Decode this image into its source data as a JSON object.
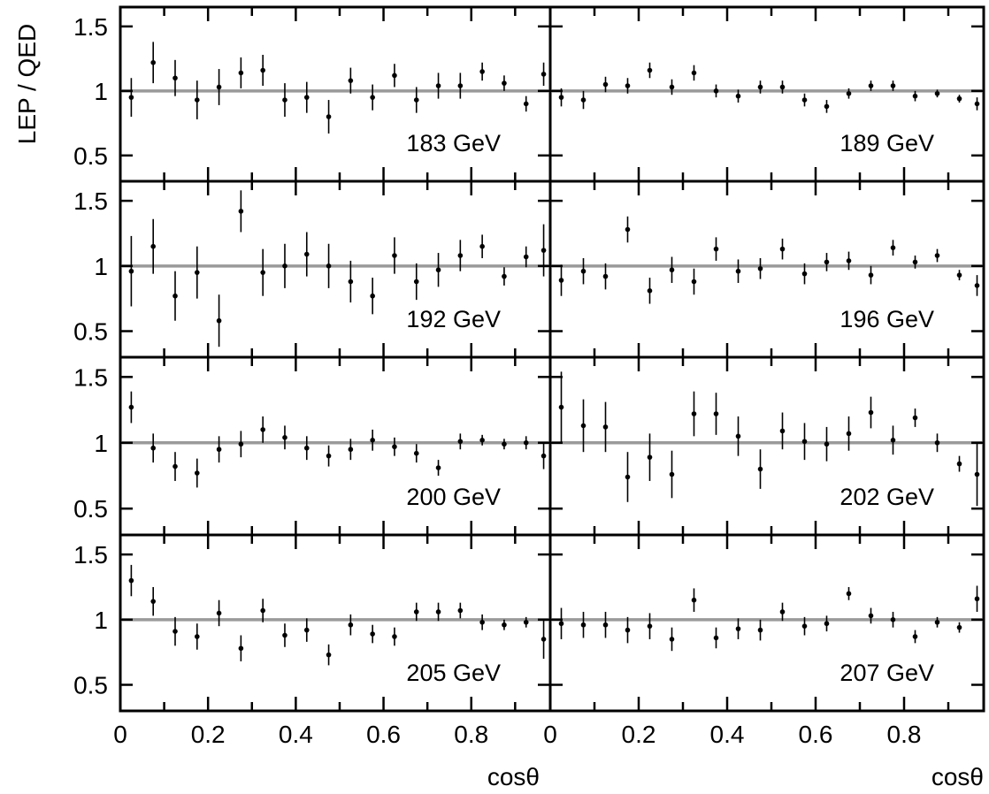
{
  "chart_data": {
    "type": "scatter",
    "ylabel": "LEP / QED",
    "xlabel": "cosθ",
    "xlim": [
      0,
      0.98
    ],
    "ylim": [
      0.3,
      1.65
    ],
    "x_tick_labels": [
      "0",
      "0.2",
      "0.4",
      "0.6",
      "0.8"
    ],
    "y_tick_labels": [
      "0.5",
      "1",
      "1.5"
    ],
    "reference_line": 1.0,
    "reference_color": "#9a9a9a",
    "marker_color": "#000000",
    "panels": [
      {
        "label": "183 GeV",
        "x": [
          0.025,
          0.075,
          0.125,
          0.175,
          0.225,
          0.275,
          0.325,
          0.375,
          0.425,
          0.475,
          0.525,
          0.575,
          0.625,
          0.675,
          0.725,
          0.775,
          0.825,
          0.875,
          0.925,
          0.965
        ],
        "y": [
          0.95,
          1.22,
          1.1,
          0.93,
          1.03,
          1.14,
          1.16,
          0.93,
          0.95,
          0.8,
          1.08,
          0.95,
          1.12,
          0.93,
          1.04,
          1.04,
          1.15,
          1.06,
          0.9,
          1.13
        ],
        "err": [
          0.15,
          0.16,
          0.14,
          0.15,
          0.14,
          0.12,
          0.12,
          0.13,
          0.12,
          0.13,
          0.1,
          0.1,
          0.09,
          0.1,
          0.1,
          0.1,
          0.07,
          0.06,
          0.06,
          0.09
        ]
      },
      {
        "label": "189 GeV",
        "x": [
          0.025,
          0.075,
          0.125,
          0.175,
          0.225,
          0.275,
          0.325,
          0.375,
          0.425,
          0.475,
          0.525,
          0.575,
          0.625,
          0.675,
          0.725,
          0.775,
          0.825,
          0.875,
          0.925,
          0.965
        ],
        "y": [
          0.95,
          0.93,
          1.05,
          1.04,
          1.16,
          1.03,
          1.14,
          1.0,
          0.96,
          1.03,
          1.03,
          0.93,
          0.88,
          0.98,
          1.04,
          1.04,
          0.96,
          0.98,
          0.94,
          0.9
        ],
        "err": [
          0.07,
          0.07,
          0.06,
          0.06,
          0.06,
          0.06,
          0.06,
          0.05,
          0.05,
          0.05,
          0.05,
          0.05,
          0.05,
          0.04,
          0.04,
          0.04,
          0.04,
          0.03,
          0.03,
          0.05
        ]
      },
      {
        "label": "192 GeV",
        "x": [
          0.025,
          0.075,
          0.125,
          0.175,
          0.225,
          0.275,
          0.325,
          0.375,
          0.425,
          0.475,
          0.525,
          0.575,
          0.625,
          0.675,
          0.725,
          0.775,
          0.825,
          0.875,
          0.925,
          0.965
        ],
        "y": [
          0.96,
          1.15,
          0.77,
          0.95,
          0.58,
          1.42,
          0.95,
          1.0,
          1.09,
          1.0,
          0.88,
          0.77,
          1.08,
          0.88,
          0.97,
          1.08,
          1.15,
          0.92,
          1.07,
          1.12
        ],
        "err": [
          0.27,
          0.21,
          0.19,
          0.2,
          0.2,
          0.16,
          0.18,
          0.17,
          0.17,
          0.17,
          0.16,
          0.14,
          0.14,
          0.14,
          0.13,
          0.12,
          0.09,
          0.07,
          0.08,
          0.2
        ]
      },
      {
        "label": "196 GeV",
        "x": [
          0.025,
          0.075,
          0.125,
          0.175,
          0.225,
          0.275,
          0.325,
          0.375,
          0.425,
          0.475,
          0.525,
          0.575,
          0.625,
          0.675,
          0.725,
          0.775,
          0.825,
          0.875,
          0.925,
          0.965
        ],
        "y": [
          0.89,
          0.96,
          0.92,
          1.28,
          0.81,
          0.97,
          0.88,
          1.13,
          0.96,
          0.98,
          1.13,
          0.94,
          1.03,
          1.04,
          0.93,
          1.14,
          1.03,
          1.08,
          0.93,
          0.85
        ],
        "err": [
          0.12,
          0.1,
          0.1,
          0.1,
          0.1,
          0.1,
          0.1,
          0.09,
          0.09,
          0.08,
          0.08,
          0.08,
          0.07,
          0.07,
          0.07,
          0.06,
          0.05,
          0.05,
          0.04,
          0.08
        ]
      },
      {
        "label": "200 GeV",
        "x": [
          0.025,
          0.075,
          0.125,
          0.175,
          0.225,
          0.275,
          0.325,
          0.375,
          0.425,
          0.475,
          0.525,
          0.575,
          0.625,
          0.675,
          0.725,
          0.775,
          0.825,
          0.875,
          0.925,
          0.965
        ],
        "y": [
          1.27,
          0.96,
          0.82,
          0.77,
          0.95,
          0.99,
          1.1,
          1.04,
          0.96,
          0.9,
          0.95,
          1.02,
          0.97,
          0.92,
          0.81,
          1.01,
          1.02,
          0.99,
          1.0,
          0.9
        ],
        "err": [
          0.12,
          0.11,
          0.11,
          0.11,
          0.1,
          0.1,
          0.1,
          0.09,
          0.09,
          0.08,
          0.08,
          0.08,
          0.07,
          0.07,
          0.06,
          0.06,
          0.04,
          0.04,
          0.05,
          0.1
        ]
      },
      {
        "label": "202 GeV",
        "x": [
          0.025,
          0.075,
          0.125,
          0.175,
          0.225,
          0.275,
          0.325,
          0.375,
          0.425,
          0.475,
          0.525,
          0.575,
          0.625,
          0.675,
          0.725,
          0.775,
          0.825,
          0.875,
          0.925,
          0.965
        ],
        "y": [
          1.27,
          1.13,
          1.12,
          0.74,
          0.89,
          0.76,
          1.22,
          1.22,
          1.05,
          0.8,
          1.09,
          1.01,
          0.99,
          1.07,
          1.23,
          1.02,
          1.19,
          1.0,
          0.84,
          0.76
        ],
        "err": [
          0.27,
          0.2,
          0.19,
          0.19,
          0.18,
          0.18,
          0.17,
          0.16,
          0.15,
          0.15,
          0.14,
          0.14,
          0.13,
          0.13,
          0.12,
          0.11,
          0.07,
          0.07,
          0.06,
          0.24
        ]
      },
      {
        "label": "205 GeV",
        "x": [
          0.025,
          0.075,
          0.125,
          0.175,
          0.225,
          0.275,
          0.325,
          0.375,
          0.425,
          0.475,
          0.525,
          0.575,
          0.625,
          0.675,
          0.725,
          0.775,
          0.825,
          0.875,
          0.925,
          0.965
        ],
        "y": [
          1.3,
          1.14,
          0.91,
          0.87,
          1.05,
          0.78,
          1.07,
          0.88,
          0.92,
          0.73,
          0.96,
          0.89,
          0.87,
          1.06,
          1.06,
          1.07,
          0.98,
          0.96,
          0.98,
          0.85
        ],
        "err": [
          0.12,
          0.11,
          0.11,
          0.1,
          0.1,
          0.1,
          0.09,
          0.09,
          0.09,
          0.08,
          0.08,
          0.07,
          0.07,
          0.07,
          0.07,
          0.06,
          0.06,
          0.04,
          0.04,
          0.15
        ]
      },
      {
        "label": "207 GeV",
        "x": [
          0.025,
          0.075,
          0.125,
          0.175,
          0.225,
          0.275,
          0.325,
          0.375,
          0.425,
          0.475,
          0.525,
          0.575,
          0.625,
          0.675,
          0.725,
          0.775,
          0.825,
          0.875,
          0.925,
          0.965
        ],
        "y": [
          0.97,
          0.96,
          0.96,
          0.92,
          0.95,
          0.85,
          1.15,
          0.86,
          0.93,
          0.92,
          1.06,
          0.95,
          0.97,
          1.2,
          1.03,
          1.0,
          0.87,
          0.98,
          0.94,
          1.16
        ],
        "err": [
          0.12,
          0.1,
          0.1,
          0.1,
          0.1,
          0.09,
          0.09,
          0.08,
          0.08,
          0.08,
          0.07,
          0.07,
          0.06,
          0.05,
          0.06,
          0.06,
          0.05,
          0.04,
          0.04,
          0.1
        ]
      }
    ]
  }
}
